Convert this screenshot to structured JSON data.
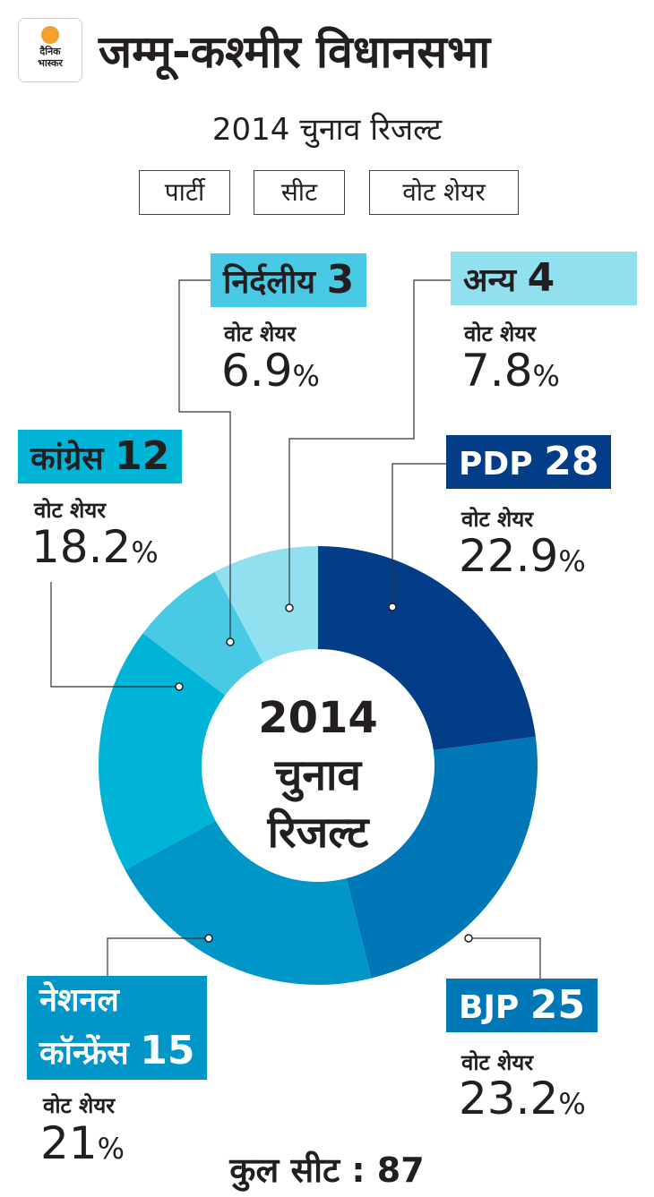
{
  "logo": {
    "line1": "दैनिक",
    "line2": "भास्कर"
  },
  "header": {
    "title": "जम्मू-कश्मीर विधानसभा",
    "subtitle": "2014 चुनाव रिजल्ट"
  },
  "tabs": [
    "पार्टी",
    "सीट",
    "वोट शेयर"
  ],
  "center": {
    "year": "2014",
    "line2": "चुनाव",
    "line3": "रिजल्ट"
  },
  "total": "कुल सीट : 87",
  "chart_data": {
    "type": "pie",
    "title": "जम्मू-कश्मीर विधानसभा 2014 चुनाव रिजल्ट",
    "vote_label": "वोट शेयर",
    "percent_sign": "%",
    "total_seats": 87,
    "series": [
      {
        "name": "PDP",
        "seats": "28",
        "vote_share": "22.9",
        "color": "#033d87"
      },
      {
        "name": "BJP",
        "seats": "25",
        "vote_share": "23.2",
        "color": "#0077b6"
      },
      {
        "name": "नेशनल कॉन्फ्रेंस",
        "name1": "नेशनल",
        "name2": "कॉन्फ्रेंस",
        "seats": "15",
        "vote_share": "21",
        "color": "#0096c7"
      },
      {
        "name": "कांग्रेस",
        "seats": "12",
        "vote_share": "18.2",
        "color": "#00b4d8"
      },
      {
        "name": "निर्दलीय",
        "seats": "3",
        "vote_share": "6.9",
        "color": "#48cae4"
      },
      {
        "name": "अन्य",
        "seats": "4",
        "vote_share": "7.8",
        "color": "#90e0ef"
      }
    ]
  }
}
